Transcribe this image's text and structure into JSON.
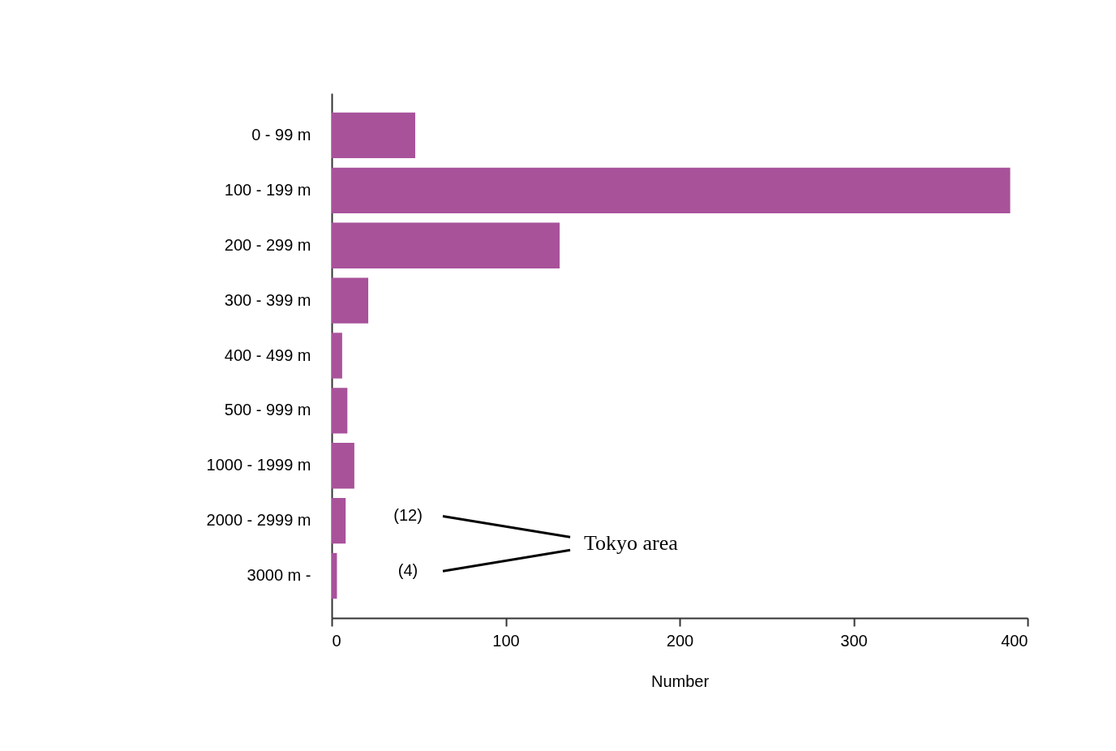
{
  "chart_data": {
    "type": "bar",
    "orientation": "horizontal",
    "xlabel": "Number",
    "categories": [
      "0 - 99  m",
      "100 - 199 m",
      "200 - 299 m",
      "300 - 399 m",
      "400 - 499 m",
      "500 - 999 m",
      "1000 - 1999 m",
      "2000 - 2999 m",
      "3000 m -"
    ],
    "values": [
      48,
      390,
      131,
      21,
      6,
      9,
      13,
      8,
      3
    ],
    "color": "#a8529a",
    "xlim": [
      0,
      400
    ],
    "xticks": [
      0,
      100,
      200,
      300,
      400
    ],
    "grid": false,
    "annotations": [
      "(12)",
      "(4)",
      "Tokyo area"
    ]
  }
}
